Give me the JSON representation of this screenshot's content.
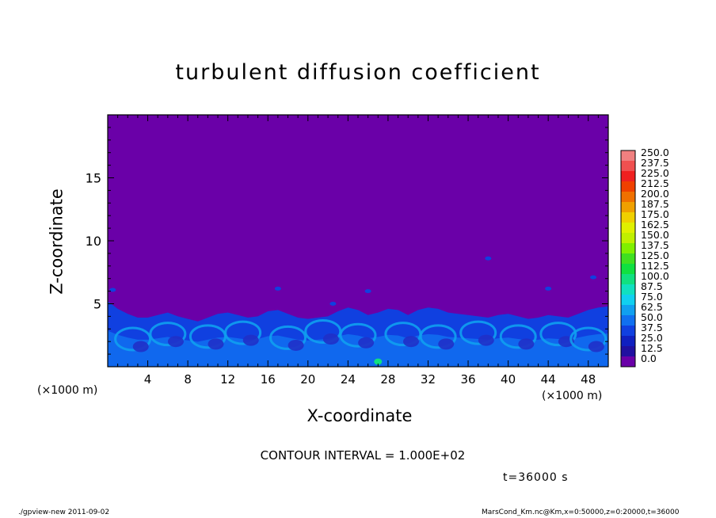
{
  "chart_data": {
    "type": "heatmap",
    "title": "turbulent diffusion coefficient",
    "xlabel": "X-coordinate",
    "ylabel": "Z-coordinate",
    "x_unit_label": "(×1000 m)",
    "xlim": [
      0,
      50
    ],
    "ylim": [
      0,
      20
    ],
    "x_ticks": [
      4,
      8,
      12,
      16,
      20,
      24,
      28,
      32,
      36,
      40,
      44,
      48
    ],
    "y_ticks": [
      5,
      10,
      15
    ],
    "colorbar": {
      "levels": [
        "250.0",
        "237.5",
        "225.0",
        "212.5",
        "200.0",
        "187.5",
        "175.0",
        "162.5",
        "150.0",
        "137.5",
        "125.0",
        "112.5",
        "100.0",
        "87.5",
        "75.0",
        "62.5",
        "50.0",
        "37.5",
        "25.0",
        "12.5",
        "0.0"
      ],
      "colors": [
        "#f08080",
        "#f05050",
        "#f02020",
        "#f04000",
        "#f07000",
        "#f0a000",
        "#f0d000",
        "#e0f000",
        "#c0f000",
        "#80f000",
        "#40e020",
        "#10e040",
        "#10e080",
        "#10e0c0",
        "#10d0f0",
        "#10a0f0",
        "#1070f0",
        "#1040e0",
        "#1020c0",
        "#2010a0",
        "#6a00a8"
      ]
    },
    "background_color": "#6a00a8",
    "contour_interval_label": "CONTOUR INTERVAL = 1.000E+02",
    "time_label": "t=36000 s"
  },
  "footer": {
    "left": "./gpview-new  2011-09-02",
    "right": "MarsCond_Km.nc@Km,x=0:50000,z=0:20000,t=36000"
  }
}
